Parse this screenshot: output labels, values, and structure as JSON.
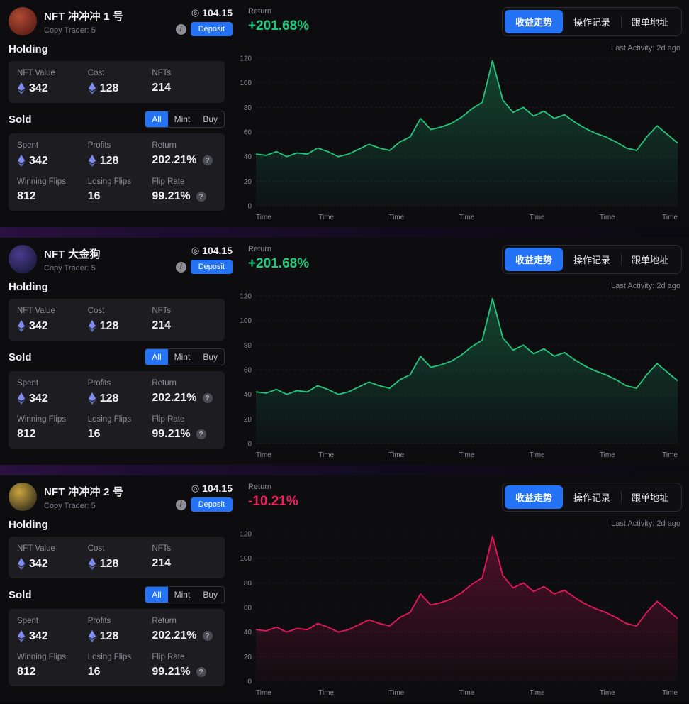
{
  "page": {
    "background": "#060608",
    "panel_bg": "#1c1c21",
    "accent_blue": "#2472f5"
  },
  "cards": [
    {
      "name": "NFT 冲冲冲 1 号",
      "subtitle": "Copy Trader: 5",
      "avatar_colors": [
        "#b04a33",
        "#471510"
      ],
      "balance_icon": "◎",
      "balance": "104.15",
      "info_icon": "i",
      "deposit_label": "Deposit",
      "return_label": "Return",
      "return_value": "+201.68%",
      "return_color": "#1ec97c",
      "tabs": [
        {
          "label": "收益走势",
          "active": true
        },
        {
          "label": "操作记录",
          "active": false
        },
        {
          "label": "跟单地址",
          "active": false
        }
      ],
      "last_activity": "Last Activity: 2d ago",
      "holding_title": "Holding",
      "holding_stats": [
        {
          "label": "NFT Value",
          "value": "342"
        },
        {
          "label": "Cost",
          "value": "128"
        },
        {
          "label": "NFTs",
          "value": "214"
        }
      ],
      "sold_title": "Sold",
      "filters": [
        "All",
        "Mint",
        "Buy"
      ],
      "sold_stats": [
        {
          "label": "Spent",
          "value": "342"
        },
        {
          "label": "Profits",
          "value": "128"
        },
        {
          "label": "Return",
          "value": "202.21%"
        },
        {
          "label": "Winning Flips",
          "value": "812"
        },
        {
          "label": "Losing Flips",
          "value": "16"
        },
        {
          "label": "Flip Rate",
          "value": "99.21%"
        }
      ],
      "chart": {
        "type": "area",
        "color": "#22c77e",
        "ylim": [
          0,
          120
        ],
        "y_ticks": [
          0,
          20,
          40,
          60,
          80,
          100,
          120
        ],
        "x_labels": [
          "Time",
          "Time",
          "Time",
          "Time",
          "Time",
          "Time",
          "Time"
        ],
        "values": [
          42,
          41,
          44,
          40,
          43,
          42,
          47,
          44,
          40,
          42,
          46,
          50,
          47,
          45,
          52,
          56,
          71,
          62,
          64,
          67,
          72,
          79,
          84,
          118,
          86,
          76,
          80,
          73,
          77,
          71,
          74,
          68,
          63,
          59,
          56,
          52,
          47,
          45,
          56,
          65,
          58,
          51
        ]
      }
    },
    {
      "name": "NFT 大金狗",
      "subtitle": "Copy Trader: 5",
      "avatar_colors": [
        "#4a3b8f",
        "#141428"
      ],
      "balance_icon": "◎",
      "balance": "104.15",
      "info_icon": "i",
      "deposit_label": "Deposit",
      "return_label": "Return",
      "return_value": "+201.68%",
      "return_color": "#1ec97c",
      "tabs": [
        {
          "label": "收益走势",
          "active": true
        },
        {
          "label": "操作记录",
          "active": false
        },
        {
          "label": "跟单地址",
          "active": false
        }
      ],
      "last_activity": "Last Activity: 2d ago",
      "holding_title": "Holding",
      "holding_stats": [
        {
          "label": "NFT Value",
          "value": "342"
        },
        {
          "label": "Cost",
          "value": "128"
        },
        {
          "label": "NFTs",
          "value": "214"
        }
      ],
      "sold_title": "Sold",
      "filters": [
        "All",
        "Mint",
        "Buy"
      ],
      "sold_stats": [
        {
          "label": "Spent",
          "value": "342"
        },
        {
          "label": "Profits",
          "value": "128"
        },
        {
          "label": "Return",
          "value": "202.21%"
        },
        {
          "label": "Winning Flips",
          "value": "812"
        },
        {
          "label": "Losing Flips",
          "value": "16"
        },
        {
          "label": "Flip Rate",
          "value": "99.21%"
        }
      ],
      "chart": {
        "type": "area",
        "color": "#22c77e",
        "ylim": [
          0,
          120
        ],
        "y_ticks": [
          0,
          20,
          40,
          60,
          80,
          100,
          120
        ],
        "x_labels": [
          "Time",
          "Time",
          "Time",
          "Time",
          "Time",
          "Time",
          "Time"
        ],
        "values": [
          42,
          41,
          44,
          40,
          43,
          42,
          47,
          44,
          40,
          42,
          46,
          50,
          47,
          45,
          52,
          56,
          71,
          62,
          64,
          67,
          72,
          79,
          84,
          118,
          86,
          76,
          80,
          73,
          77,
          71,
          74,
          68,
          63,
          59,
          56,
          52,
          47,
          45,
          56,
          65,
          58,
          51
        ]
      }
    },
    {
      "name": "NFT 冲冲冲 2 号",
      "subtitle": "Copy Trader: 5",
      "avatar_colors": [
        "#caa53d",
        "#15151a"
      ],
      "balance_icon": "◎",
      "balance": "104.15",
      "info_icon": "i",
      "deposit_label": "Deposit",
      "return_label": "Return",
      "return_value": "-10.21%",
      "return_color": "#ef2160",
      "tabs": [
        {
          "label": "收益走势",
          "active": true
        },
        {
          "label": "操作记录",
          "active": false
        },
        {
          "label": "跟单地址",
          "active": false
        }
      ],
      "last_activity": "Last Activity: 2d ago",
      "holding_title": "Holding",
      "holding_stats": [
        {
          "label": "NFT Value",
          "value": "342"
        },
        {
          "label": "Cost",
          "value": "128"
        },
        {
          "label": "NFTs",
          "value": "214"
        }
      ],
      "sold_title": "Sold",
      "filters": [
        "All",
        "Mint",
        "Buy"
      ],
      "sold_stats": [
        {
          "label": "Spent",
          "value": "342"
        },
        {
          "label": "Profits",
          "value": "128"
        },
        {
          "label": "Return",
          "value": "202.21%"
        },
        {
          "label": "Winning Flips",
          "value": "812"
        },
        {
          "label": "Losing Flips",
          "value": "16"
        },
        {
          "label": "Flip Rate",
          "value": "99.21%"
        }
      ],
      "chart": {
        "type": "area",
        "color": "#e8175c",
        "ylim": [
          0,
          120
        ],
        "y_ticks": [
          0,
          20,
          40,
          60,
          80,
          100,
          120
        ],
        "x_labels": [
          "Time",
          "Time",
          "Time",
          "Time",
          "Time",
          "Time",
          "Time"
        ],
        "values": [
          42,
          41,
          44,
          40,
          43,
          42,
          47,
          44,
          40,
          42,
          46,
          50,
          47,
          45,
          52,
          56,
          71,
          62,
          64,
          67,
          72,
          79,
          84,
          118,
          86,
          76,
          80,
          73,
          77,
          71,
          74,
          68,
          63,
          59,
          56,
          52,
          47,
          45,
          56,
          65,
          58,
          51
        ]
      }
    }
  ]
}
